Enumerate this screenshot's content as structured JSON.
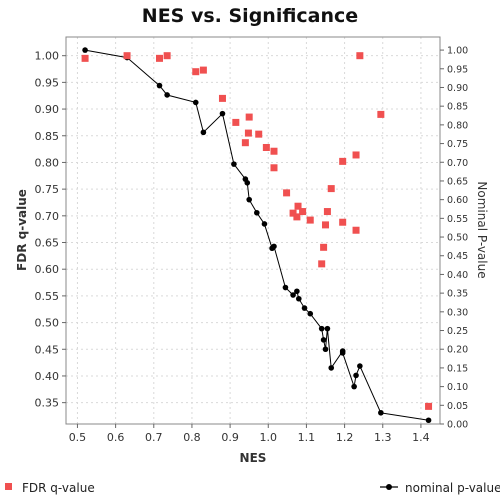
{
  "chart_data": {
    "type": "scatter",
    "title": "NES vs. Significance",
    "xlabel": "NES",
    "ylabel_left": "FDR q-value",
    "ylabel_right": "Nominal P-value",
    "xlim": [
      0.47,
      1.45
    ],
    "ylim_left": [
      0.31,
      1.035
    ],
    "ylim_right": [
      0.0,
      1.035
    ],
    "x_ticks": [
      "0.5",
      "0.6",
      "0.7",
      "0.8",
      "0.9",
      "1.0",
      "1.1",
      "1.2",
      "1.3",
      "1.4"
    ],
    "y_left_ticks": [
      "0.35",
      "0.40",
      "0.45",
      "0.50",
      "0.55",
      "0.60",
      "0.65",
      "0.70",
      "0.75",
      "0.80",
      "0.85",
      "0.90",
      "0.95",
      "1.00"
    ],
    "y_right_ticks": [
      "0.00",
      "0.05",
      "0.10",
      "0.15",
      "0.20",
      "0.25",
      "0.30",
      "0.35",
      "0.40",
      "0.45",
      "0.50",
      "0.55",
      "0.60",
      "0.65",
      "0.70",
      "0.75",
      "0.80",
      "0.85",
      "0.90",
      "0.95",
      "1.00"
    ],
    "grid": true,
    "legend_position": "bottom",
    "series": [
      {
        "name": "FDR q-value",
        "axis": "left",
        "style": "square-markers",
        "color": "#f05050",
        "x": [
          0.52,
          0.63,
          0.715,
          0.735,
          0.81,
          0.83,
          0.88,
          0.915,
          0.94,
          0.948,
          0.95,
          0.975,
          0.995,
          1.015,
          1.015,
          1.048,
          1.065,
          1.075,
          1.078,
          1.09,
          1.11,
          1.14,
          1.145,
          1.15,
          1.155,
          1.165,
          1.195,
          1.195,
          1.23,
          1.23,
          1.24,
          1.295,
          1.42
        ],
        "y": [
          0.995,
          1.0,
          0.995,
          1.0,
          0.97,
          0.973,
          0.92,
          0.875,
          0.837,
          0.855,
          0.885,
          0.853,
          0.828,
          0.821,
          0.79,
          0.743,
          0.705,
          0.698,
          0.718,
          0.708,
          0.692,
          0.61,
          0.641,
          0.683,
          0.708,
          0.751,
          0.802,
          0.688,
          0.814,
          0.673,
          1.0,
          0.89,
          0.343
        ]
      },
      {
        "name": "nominal p-value",
        "axis": "right",
        "style": "line-with-dots",
        "color": "#000000",
        "x": [
          0.52,
          0.63,
          0.715,
          0.735,
          0.81,
          0.83,
          0.88,
          0.91,
          0.94,
          0.945,
          0.95,
          0.97,
          0.99,
          1.01,
          1.015,
          1.045,
          1.065,
          1.075,
          1.08,
          1.095,
          1.11,
          1.14,
          1.145,
          1.15,
          1.155,
          1.165,
          1.195,
          1.195,
          1.225,
          1.23,
          1.24,
          1.295,
          1.42
        ],
        "y": [
          1.0,
          0.98,
          0.905,
          0.88,
          0.86,
          0.78,
          0.83,
          0.695,
          0.655,
          0.645,
          0.6,
          0.565,
          0.535,
          0.47,
          0.475,
          0.365,
          0.345,
          0.355,
          0.335,
          0.31,
          0.295,
          0.255,
          0.225,
          0.2,
          0.255,
          0.15,
          0.195,
          0.19,
          0.1,
          0.13,
          0.155,
          0.03,
          0.01
        ]
      }
    ]
  }
}
